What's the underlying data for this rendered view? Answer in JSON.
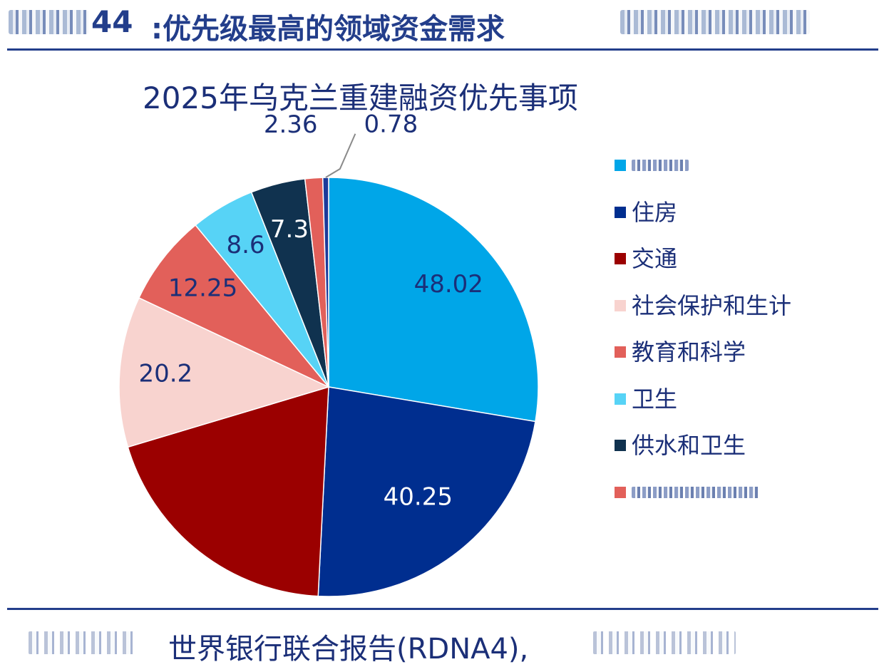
{
  "figure": {
    "number": "44",
    "title": ":优先级最高的领域资金需求"
  },
  "source": {
    "text": "世界银行联合报告(RDNA4),"
  },
  "chart_data": {
    "type": "pie",
    "title": "2025年乌克兰重建融资优先事项",
    "start_angle_deg": 0,
    "direction": "clockwise",
    "slices": [
      {
        "label": "",
        "value": 48.02,
        "color": "#00a6e8",
        "label_color": "#1b2f78"
      },
      {
        "label": "住房",
        "value": 40.25,
        "color": "#002e8f",
        "label_color": "#ffffff"
      },
      {
        "label": "交通",
        "value": 34.0,
        "color": "#9b0000",
        "label_color": "#1b2f78",
        "data_label": ""
      },
      {
        "label": "社会保护和生计",
        "value": 20.2,
        "color": "#f8d3cf",
        "label_color": "#1b2f78"
      },
      {
        "label": "教育和科学",
        "value": 12.25,
        "color": "#e2605a",
        "label_color": "#1b2f78"
      },
      {
        "label": "卫生",
        "value": 8.6,
        "color": "#57d3f6",
        "label_color": "#1b2f78"
      },
      {
        "label": "供水和卫生",
        "value": 7.3,
        "color": "#10324f",
        "label_color": "#ffffff"
      },
      {
        "label": "",
        "value": 2.36,
        "color": "#e2605a",
        "label_color": "#1b2f78"
      },
      {
        "label": "",
        "value": 0.78,
        "color": "#1c3a9a",
        "label_color": "#1b2f78"
      }
    ],
    "legend_position": "right"
  }
}
